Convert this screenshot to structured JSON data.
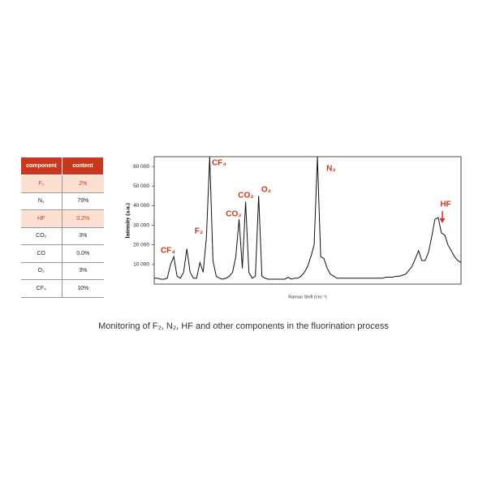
{
  "table": {
    "header": [
      "component",
      "content"
    ],
    "rows": [
      [
        "F₂",
        "2%"
      ],
      [
        "N₂",
        "79%"
      ],
      [
        "HF",
        "0.2%"
      ],
      [
        "CO₂",
        "3%"
      ],
      [
        "CO",
        "0.0%"
      ],
      [
        "O₂",
        "3%"
      ],
      [
        "CF₄",
        "10%"
      ]
    ]
  },
  "chart_data": {
    "type": "line",
    "xlabel": "Raman Shift (cm⁻¹)",
    "ylabel": "Intensity (a.u.)",
    "ylim": [
      0,
      65000
    ],
    "yticks": [
      {
        "value": 10000,
        "label": "10 000"
      },
      {
        "value": 20000,
        "label": "20 000"
      },
      {
        "value": 30000,
        "label": "30 000"
      },
      {
        "value": 40000,
        "label": "40 000"
      },
      {
        "value": 50000,
        "label": "50 000"
      },
      {
        "value": 60000,
        "label": "60 000"
      }
    ],
    "color": "#111111",
    "annotations": [
      "CF₄",
      "F₂",
      "CF₄",
      "CO₂",
      "CO₂",
      "O₂",
      "N₂",
      "HF"
    ],
    "values": [
      3000,
      3000,
      2500,
      2500,
      3000,
      10000,
      14000,
      4000,
      3000,
      6000,
      18000,
      6000,
      3000,
      3000,
      11000,
      6000,
      24000,
      65000,
      12000,
      4000,
      3000,
      2500,
      3000,
      4000,
      6000,
      14000,
      33000,
      8000,
      42000,
      6000,
      3000,
      4000,
      45000,
      4000,
      3000,
      2500,
      2500,
      2500,
      2500,
      2500,
      2500,
      3500,
      2500,
      3000,
      3000,
      4000,
      6000,
      9000,
      14000,
      20000,
      65000,
      14000,
      13000,
      8000,
      5000,
      4000,
      3000,
      3000,
      3000,
      3000,
      3000,
      3000,
      3000,
      3000,
      3000,
      3000,
      3000,
      3000,
      3000,
      3000,
      3000,
      3500,
      3500,
      3500,
      4000,
      4000,
      4500,
      5000,
      7000,
      9000,
      13000,
      17000,
      12000,
      12000,
      16000,
      24000,
      33000,
      34000,
      26000,
      25000,
      20000,
      17000,
      14000,
      12000,
      11000
    ]
  },
  "caption": "Monitoring of F₂, N₂, HF and other components in the fluorination process"
}
